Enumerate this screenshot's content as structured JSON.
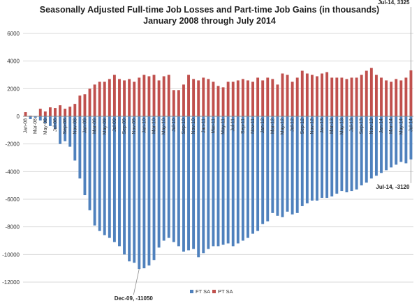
{
  "chart_data": {
    "type": "bar",
    "title": "Seasonally Adjusted Full-time Job Losses and Part-time Job Gains (in thousands)",
    "subtitle": "January 2008 through July 2014",
    "xlabel": "",
    "ylabel": "",
    "ylim": [
      -12000,
      6000
    ],
    "yticks": [
      6000,
      4000,
      2000,
      0,
      -2000,
      -4000,
      -6000,
      -8000,
      -10000,
      -12000
    ],
    "ytick_labels": [
      "6000",
      "4000",
      "2000",
      "0",
      "-2000",
      "-4000",
      "-6000",
      "-8000",
      "-10000",
      "-12000"
    ],
    "grid": true,
    "legend_position": "bottom-center",
    "categories": [
      "Jan-08",
      "Feb-08",
      "Mar-08",
      "Apr-08",
      "May-08",
      "Jun-08",
      "Jul-08",
      "Aug-08",
      "Sep-08",
      "Oct-08",
      "Nov-08",
      "Dec-08",
      "Jan-09",
      "Feb-09",
      "Mar-09",
      "Apr-09",
      "May-09",
      "Jun-09",
      "Jul-09",
      "Aug-09",
      "Sep-09",
      "Oct-09",
      "Nov-09",
      "Dec-09",
      "Jan-10",
      "Feb-10",
      "Mar-10",
      "Apr-10",
      "May-10",
      "Jun-10",
      "Jul-10",
      "Aug-10",
      "Sep-10",
      "Oct-10",
      "Nov-10",
      "Dec-10",
      "Jan-11",
      "Feb-11",
      "Mar-11",
      "Apr-11",
      "May-11",
      "Jun-11",
      "Jul-11",
      "Aug-11",
      "Sep-11",
      "Oct-11",
      "Nov-11",
      "Dec-11",
      "Jan-12",
      "Feb-12",
      "Mar-12",
      "Apr-12",
      "May-12",
      "Jun-12",
      "Jul-12",
      "Aug-12",
      "Sep-12",
      "Oct-12",
      "Nov-12",
      "Dec-12",
      "Jan-13",
      "Feb-13",
      "Mar-13",
      "Apr-13",
      "May-13",
      "Jun-13",
      "Jul-13",
      "Aug-13",
      "Sep-13",
      "Oct-13",
      "Nov-13",
      "Dec-13",
      "Jan-14",
      "Feb-14",
      "Mar-14",
      "Apr-14",
      "May-14",
      "Jun-14",
      "Jul-14"
    ],
    "tick_labels": [
      "Jan-08",
      "Mar-08",
      "May-08",
      "Jul-08",
      "Sep-08",
      "Nov-08",
      "Jan-09",
      "Mar-09",
      "May-09",
      "Jul-09",
      "Sep-09",
      "Nov-09",
      "Jan-10",
      "Mar-10",
      "May-10",
      "Jul-10",
      "Sep-10",
      "Nov-10",
      "Jan-11",
      "Mar-11",
      "May-11",
      "Jul-11",
      "Sep-11",
      "Nov-11",
      "Jan-12",
      "Mar-12",
      "May-12",
      "Jul-12",
      "Sep-12",
      "Nov-12",
      "Jan-13",
      "Mar-13",
      "May-13",
      "Jul-13",
      "Sep-13",
      "Nov-13",
      "Jan-14",
      "Mar-14",
      "May-14",
      "Jul-14"
    ],
    "series": [
      {
        "name": "FT SA",
        "color": "#4f81bd",
        "values": [
          0,
          -200,
          -100,
          -300,
          -500,
          -700,
          -900,
          -2000,
          -1800,
          -2200,
          -3200,
          -4500,
          -5700,
          -6800,
          -7900,
          -8300,
          -8600,
          -8800,
          -9100,
          -9400,
          -10000,
          -10500,
          -10600,
          -11050,
          -11000,
          -10800,
          -10400,
          -9500,
          -9000,
          -8800,
          -9100,
          -9400,
          -9800,
          -9700,
          -9600,
          -10200,
          -9900,
          -9600,
          -9400,
          -9400,
          -9300,
          -9200,
          -9400,
          -9200,
          -9000,
          -8800,
          -8500,
          -8300,
          -7800,
          -7600,
          -7000,
          -7200,
          -7300,
          -6900,
          -7100,
          -7000,
          -6500,
          -6300,
          -6100,
          -6100,
          -5900,
          -5900,
          -5800,
          -5600,
          -5400,
          -5500,
          -5400,
          -5300,
          -5000,
          -4800,
          -4500,
          -4300,
          -4100,
          -3900,
          -3700,
          -3500,
          -3300,
          -3400,
          -3120
        ]
      },
      {
        "name": "PT SA",
        "color": "#c0504d",
        "values": [
          300,
          50,
          20,
          550,
          350,
          650,
          600,
          800,
          550,
          700,
          900,
          1500,
          1600,
          2000,
          2300,
          2500,
          2500,
          2700,
          3000,
          2700,
          2600,
          2700,
          2500,
          2800,
          3000,
          2900,
          3000,
          2600,
          2900,
          3000,
          1900,
          1900,
          2300,
          3000,
          2700,
          2600,
          2800,
          2700,
          2500,
          2200,
          2100,
          2500,
          2500,
          2600,
          2700,
          2600,
          2500,
          2800,
          2600,
          2800,
          2700,
          2300,
          3100,
          3000,
          2500,
          2800,
          3300,
          3100,
          3000,
          2900,
          3100,
          3200,
          2800,
          2800,
          2800,
          2700,
          2800,
          2800,
          3000,
          3300,
          3500,
          3000,
          2800,
          2600,
          2500,
          2700,
          2600,
          2800,
          3325
        ]
      }
    ],
    "annotations": [
      {
        "text": "Jul-14, 3325",
        "category": "Jul-14",
        "series": "PT SA",
        "value": 3325
      },
      {
        "text": "Jul-14, -3120",
        "category": "Jul-14",
        "series": "FT SA",
        "value": -3120
      },
      {
        "text": "Dec-09, -11050",
        "category": "Dec-09",
        "series": "FT SA",
        "value": -11050
      }
    ]
  }
}
